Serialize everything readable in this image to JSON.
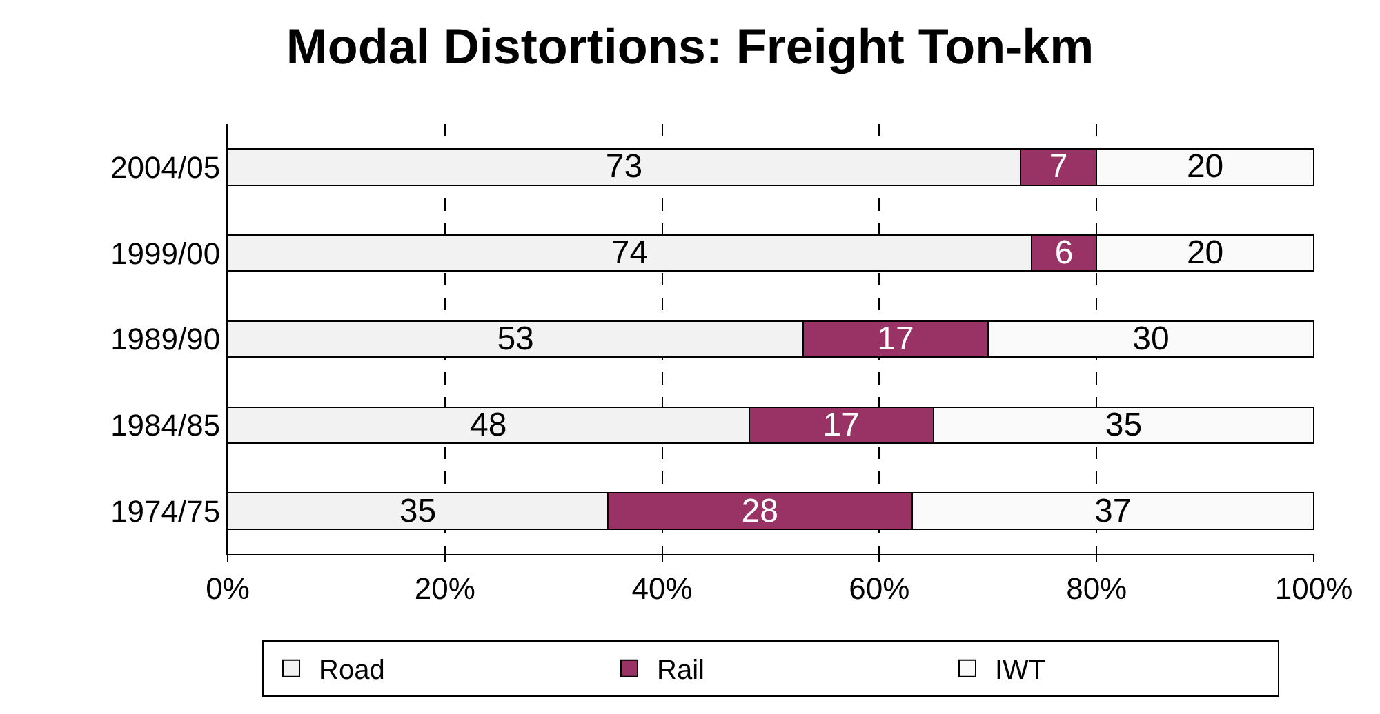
{
  "chart_data": {
    "type": "bar",
    "title": "Modal Distortions: Freight Ton-km",
    "orientation": "horizontal",
    "stacked": true,
    "categories": [
      "2004/05",
      "1999/00",
      "1989/90",
      "1984/85",
      "1974/75"
    ],
    "series": [
      {
        "name": "Road",
        "color": "#f2f2f2",
        "values": [
          73,
          74,
          53,
          48,
          35
        ]
      },
      {
        "name": "Rail",
        "color": "#993366",
        "values": [
          7,
          6,
          17,
          17,
          28
        ]
      },
      {
        "name": "IWT",
        "color": "#fafafa",
        "values": [
          20,
          20,
          30,
          35,
          37
        ]
      }
    ],
    "xlim": [
      0,
      100
    ],
    "xticks": [
      {
        "value": 0,
        "label": "0%"
      },
      {
        "value": 20,
        "label": "20%"
      },
      {
        "value": 40,
        "label": "40%"
      },
      {
        "value": 60,
        "label": "60%"
      },
      {
        "value": 80,
        "label": "80%"
      },
      {
        "value": 100,
        "label": "100%"
      }
    ],
    "grid": "x",
    "legend": "bottom",
    "data_labels": true
  }
}
